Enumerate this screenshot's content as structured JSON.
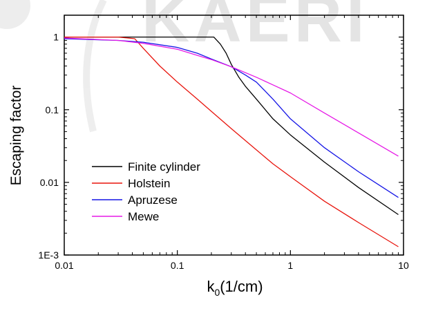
{
  "chart_data": {
    "type": "line",
    "xlabel": "k",
    "xlabel_sub": "0",
    "xlabel_unit": "(1/cm)",
    "ylabel": "Escaping factor",
    "xscale": "log",
    "yscale": "log",
    "xlim": [
      0.01,
      10
    ],
    "ylim": [
      0.001,
      2
    ],
    "xticks": [
      {
        "v": 0.01,
        "label": "0.01"
      },
      {
        "v": 0.1,
        "label": "0.1"
      },
      {
        "v": 1,
        "label": "1"
      },
      {
        "v": 10,
        "label": "10"
      }
    ],
    "yticks": [
      {
        "v": 0.001,
        "label": "1E-3"
      },
      {
        "v": 0.01,
        "label": "0.01"
      },
      {
        "v": 0.1,
        "label": "0.1"
      },
      {
        "v": 1,
        "label": "1"
      }
    ],
    "legend_position": "lower-left",
    "watermark": "KAERI",
    "series": [
      {
        "name": "Finite cylinder",
        "color": "#000000",
        "x": [
          0.01,
          0.05,
          0.1,
          0.15,
          0.21,
          0.24,
          0.27,
          0.3,
          0.35,
          0.4,
          0.5,
          0.7,
          1,
          2,
          4,
          9
        ],
        "y": [
          1,
          1,
          1,
          1,
          1,
          0.8,
          0.6,
          0.42,
          0.28,
          0.21,
          0.14,
          0.075,
          0.045,
          0.019,
          0.0085,
          0.0036
        ]
      },
      {
        "name": "Holstein",
        "color": "#e8140c",
        "x": [
          0.01,
          0.03,
          0.042,
          0.05,
          0.07,
          0.1,
          0.15,
          0.2,
          0.3,
          0.5,
          0.7,
          1,
          2,
          4,
          9
        ],
        "y": [
          1,
          1,
          0.95,
          0.7,
          0.4,
          0.24,
          0.14,
          0.095,
          0.055,
          0.028,
          0.018,
          0.012,
          0.0055,
          0.0028,
          0.0013
        ]
      },
      {
        "name": "Apruzese",
        "color": "#1414e6",
        "x": [
          0.01,
          0.03,
          0.05,
          0.1,
          0.15,
          0.2,
          0.3,
          0.4,
          0.5,
          0.7,
          1,
          2,
          4,
          9
        ],
        "y": [
          0.95,
          0.9,
          0.85,
          0.72,
          0.6,
          0.5,
          0.39,
          0.3,
          0.24,
          0.14,
          0.075,
          0.03,
          0.014,
          0.0062
        ]
      },
      {
        "name": "Mewe",
        "color": "#e619e6",
        "x": [
          0.01,
          0.03,
          0.05,
          0.1,
          0.15,
          0.2,
          0.3,
          0.5,
          0.7,
          1,
          2,
          4,
          9
        ],
        "y": [
          0.97,
          0.9,
          0.82,
          0.68,
          0.56,
          0.49,
          0.39,
          0.28,
          0.22,
          0.17,
          0.09,
          0.048,
          0.023
        ]
      }
    ]
  }
}
